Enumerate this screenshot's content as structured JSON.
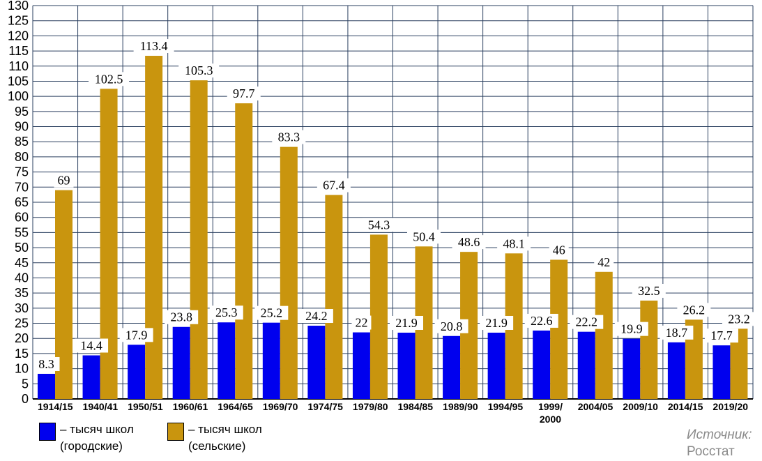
{
  "chart_data": {
    "type": "bar",
    "categories": [
      "1914/15",
      "1940/41",
      "1950/51",
      "1960/61",
      "1964/65",
      "1969/70",
      "1974/75",
      "1979/80",
      "1984/85",
      "1989/90",
      "1994/95",
      "1999/ 2000",
      "2004/05",
      "2009/10",
      "2014/15",
      "2019/20"
    ],
    "series": [
      {
        "name": "– тысяч школ (городские)",
        "values": [
          8.3,
          14.4,
          17.9,
          23.8,
          25.3,
          25.2,
          24.2,
          22,
          21.9,
          20.8,
          21.9,
          22.6,
          22.2,
          19.9,
          18.7,
          17.7
        ]
      },
      {
        "name": "– тысяч школ (сельские)",
        "values": [
          69,
          102.5,
          113.4,
          105.3,
          97.7,
          83.3,
          67.4,
          54.3,
          50.4,
          48.6,
          48.1,
          46,
          42,
          32.5,
          26.2,
          23.2
        ]
      }
    ],
    "ylim": [
      0,
      130
    ],
    "ystep": 5,
    "grid": true,
    "legend": "bottom-left",
    "colors": {
      "urban": "#0000ee",
      "rural": "#c9950e",
      "grid": "#2a3f5f",
      "label_bg": "#ffffff"
    }
  },
  "legend": {
    "urban": {
      "line1": "– тысяч школ",
      "line2": "(городские)"
    },
    "rural": {
      "line1": "– тысяч школ",
      "line2": "(сельские)"
    }
  },
  "source": {
    "label": "Источник:",
    "value": "Росстат"
  }
}
